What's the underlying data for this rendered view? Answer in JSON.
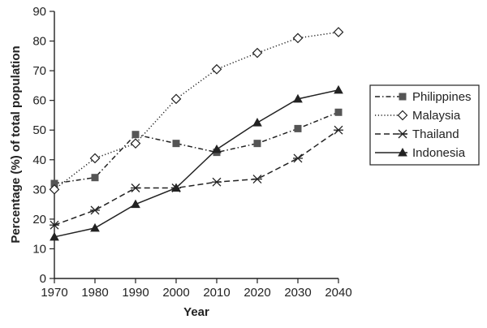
{
  "chart_data": {
    "type": "line",
    "xlabel": "Year",
    "ylabel": "Percentage (%) of total population",
    "x": [
      1970,
      1980,
      1990,
      2000,
      2010,
      2020,
      2030,
      2040
    ],
    "xticks": [
      "1970",
      "1980",
      "1990",
      "2000",
      "2010",
      "2020",
      "2030",
      "2040"
    ],
    "yticks": [
      "0",
      "10",
      "20",
      "30",
      "40",
      "50",
      "60",
      "70",
      "80",
      "90"
    ],
    "xlim": [
      1970,
      2040
    ],
    "ylim": [
      0,
      90
    ],
    "grid": false,
    "legend_position": "right",
    "series": [
      {
        "name": "Philippines",
        "line_style": "dash-dot",
        "marker": "square",
        "color": "#555555",
        "values": [
          32,
          34,
          48.5,
          45.5,
          42.5,
          45.5,
          50.5,
          56
        ]
      },
      {
        "name": "Malaysia",
        "line_style": "dotted",
        "marker": "diamond-open",
        "color": "#222222",
        "values": [
          30,
          40.5,
          45.5,
          60.5,
          70.5,
          76,
          81,
          83
        ]
      },
      {
        "name": "Thailand",
        "line_style": "dashed",
        "marker": "asterisk",
        "color": "#222222",
        "values": [
          18,
          23,
          30.5,
          30.5,
          32.5,
          33.5,
          40.5,
          50
        ]
      },
      {
        "name": "Indonesia",
        "line_style": "solid",
        "marker": "triangle",
        "color": "#222222",
        "values": [
          14,
          17,
          25,
          30.5,
          43.5,
          52.5,
          60.5,
          63.5
        ]
      }
    ]
  }
}
